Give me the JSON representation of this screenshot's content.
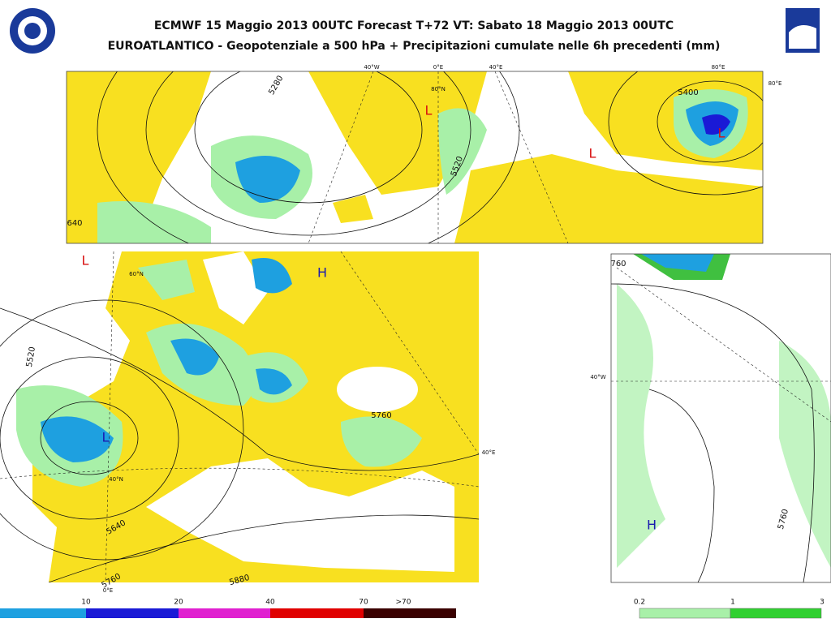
{
  "header": {
    "title": "ECMWF 15 Maggio 2013 00UTC Forecast T+72 VT: Sabato 18 Maggio 2013 00UTC",
    "subtitle": "EUROATLANTICO - Geopotenziale a 500 hPa + Precipitazioni cumulate nelle 6h precedenti (mm)"
  },
  "top_map": {
    "labels": [
      "40°W",
      "0°E",
      "40°E",
      "80°E",
      "80°E",
      "80°N",
      "5280",
      "5520",
      "640",
      "5400",
      "L",
      "L",
      "L"
    ]
  },
  "left_map": {
    "labels": [
      "L",
      "H",
      "L",
      "60°N",
      "5520",
      "5760",
      "40°E",
      "40°N",
      "5640",
      "5760",
      "0°E",
      "5880"
    ]
  },
  "right_map": {
    "labels": [
      "760",
      "40°W",
      "H",
      "5760"
    ]
  },
  "legend": {
    "precip_high": [
      "10",
      "20",
      "40",
      "70",
      ">70"
    ],
    "precip_low": [
      "0.2",
      "1",
      "3"
    ]
  }
}
